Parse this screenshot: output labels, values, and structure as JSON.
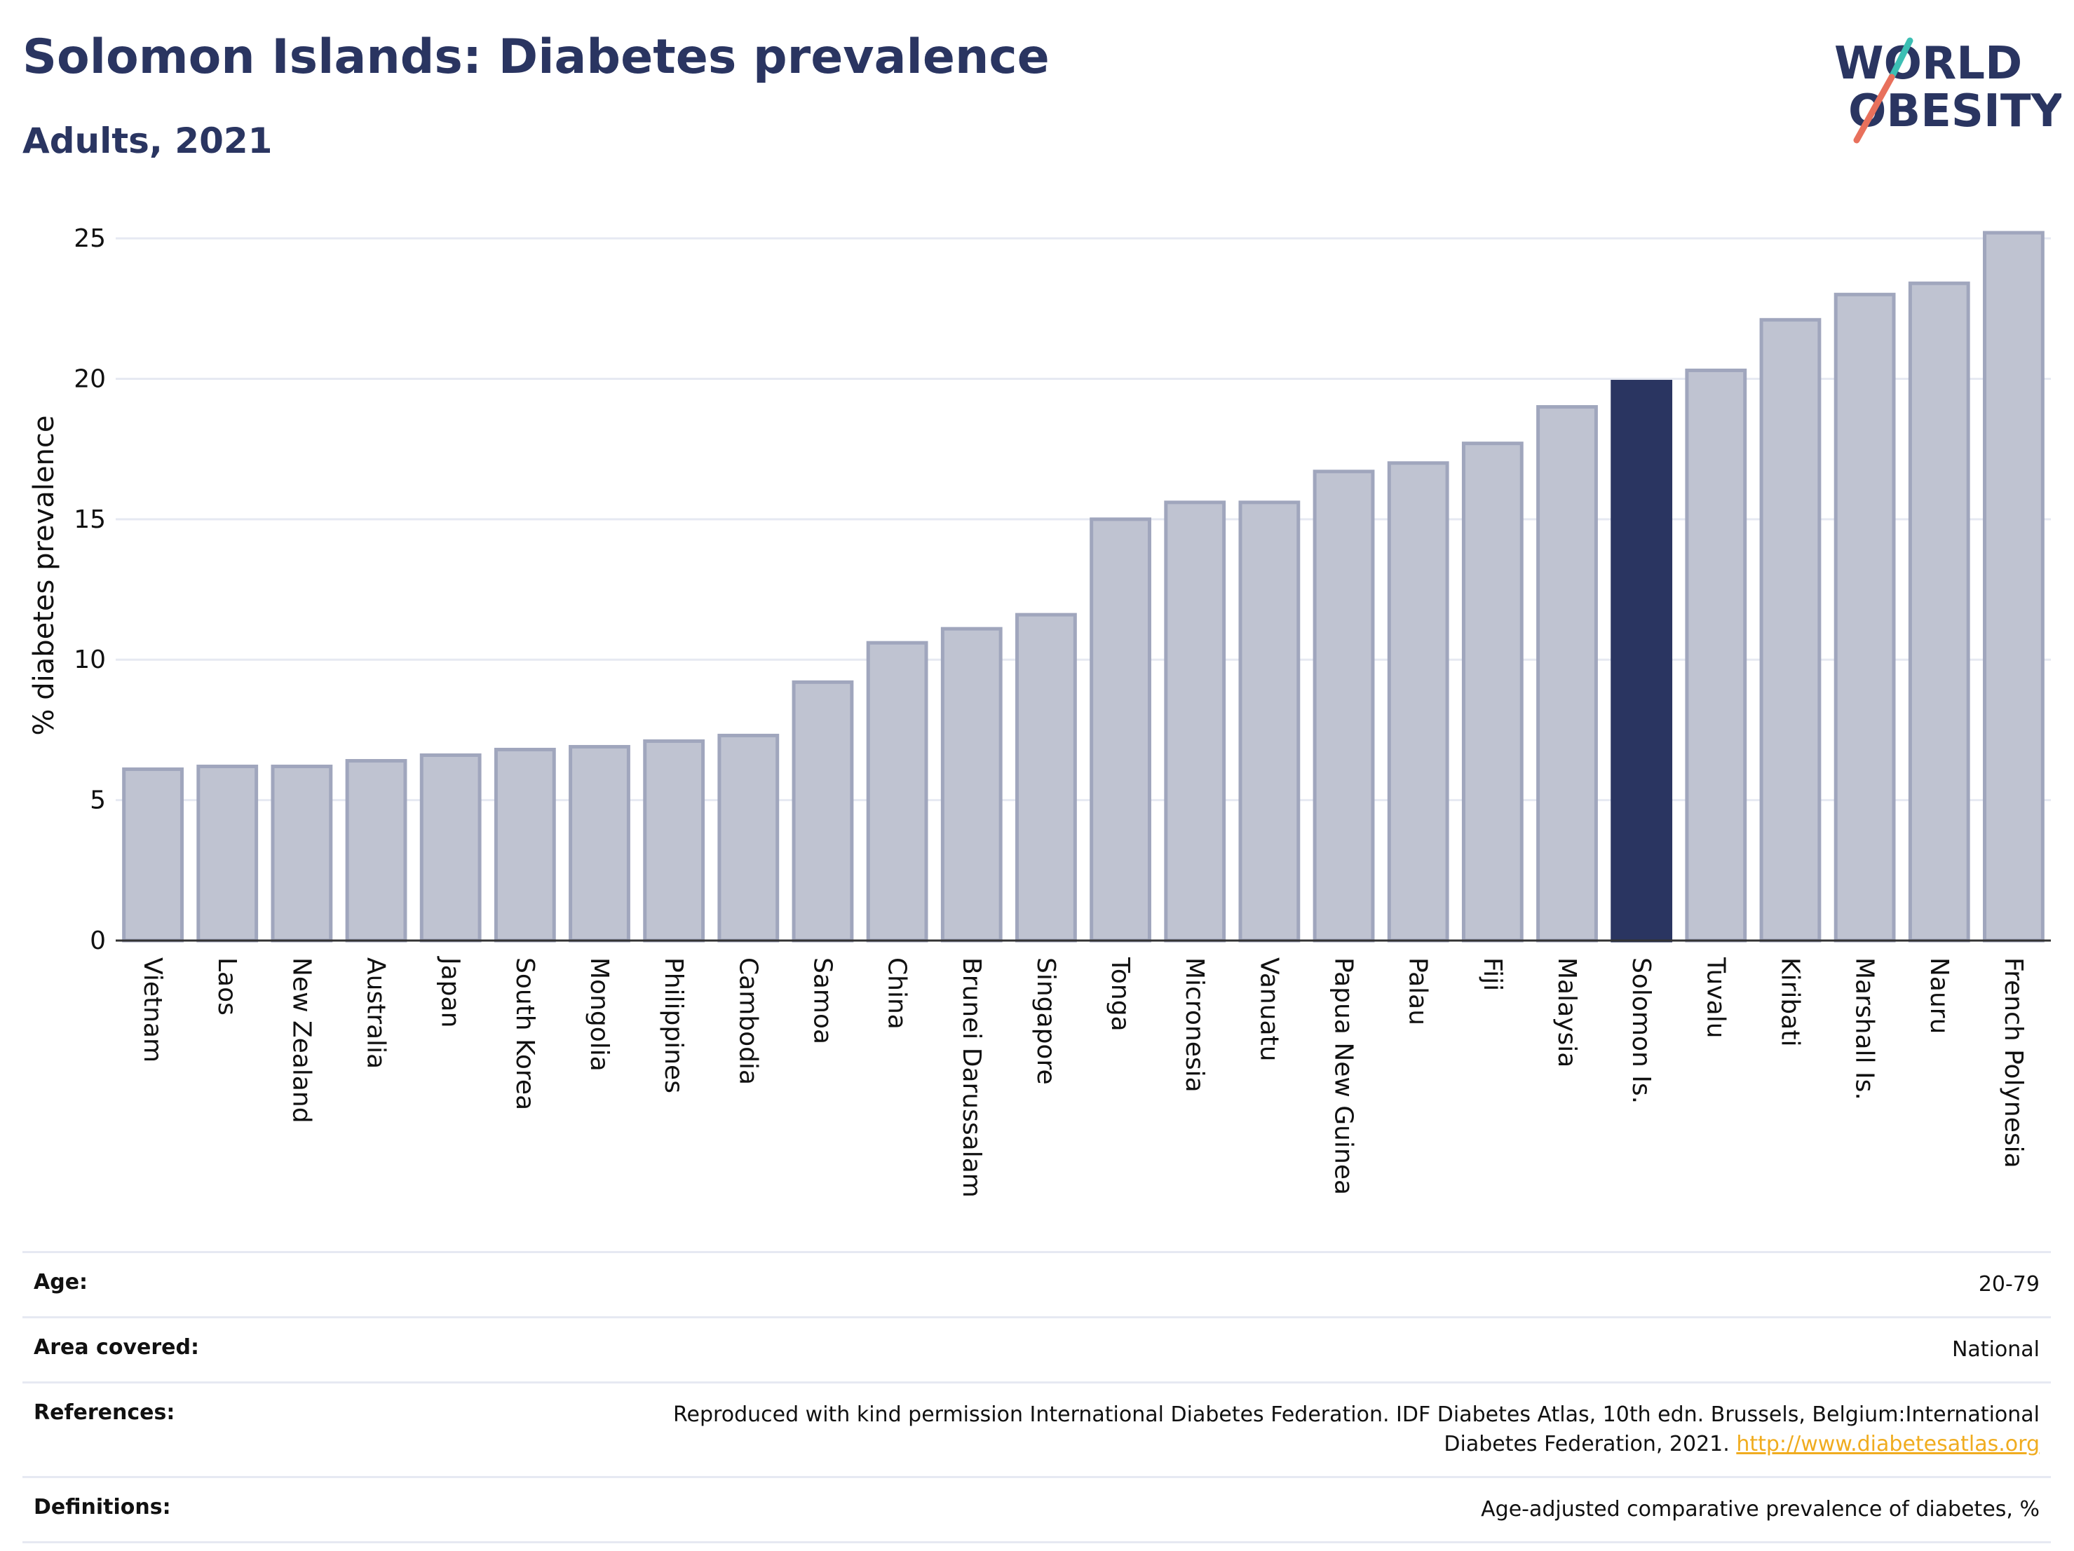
{
  "header": {
    "title": "Solomon Islands: Diabetes prevalence",
    "subtitle": "Adults, 2021"
  },
  "logo": {
    "line1": "WORLD",
    "line2": "OBESITY",
    "colors": {
      "text": "#2a3561",
      "teal": "#3cbfb4",
      "coral": "#e8705c"
    }
  },
  "colors": {
    "bar": "#bfc3d1",
    "bar_stroke": "#a0a6bd",
    "highlight": "#2a3561",
    "grid": "#e6e9f2",
    "axis": "#333333",
    "text": "#111111"
  },
  "chart_data": {
    "type": "bar",
    "ylabel": "% diabetes prevalence",
    "ylim": [
      0,
      26
    ],
    "yticks": [
      0,
      5,
      10,
      15,
      20,
      25
    ],
    "grid": true,
    "highlight": "Solomon Is.",
    "categories": [
      "Vietnam",
      "Laos",
      "New Zealand",
      "Australia",
      "Japan",
      "South Korea",
      "Mongolia",
      "Philippines",
      "Cambodia",
      "Samoa",
      "China",
      "Brunei Darussalam",
      "Singapore",
      "Tonga",
      "Micronesia",
      "Vanuatu",
      "Papua New Guinea",
      "Palau",
      "Fiji",
      "Malaysia",
      "Solomon Is.",
      "Tuvalu",
      "Kiribati",
      "Marshall Is.",
      "Nauru",
      "French Polynesia"
    ],
    "values": [
      6.1,
      6.2,
      6.2,
      6.4,
      6.6,
      6.8,
      6.9,
      7.1,
      7.3,
      9.2,
      10.6,
      11.1,
      11.6,
      15.0,
      15.6,
      15.6,
      16.7,
      17.0,
      17.7,
      19.0,
      19.9,
      20.3,
      22.1,
      23.0,
      23.4,
      25.2
    ]
  },
  "info": {
    "rows": [
      {
        "label": "Age:",
        "value": "20-79"
      },
      {
        "label": "Area covered:",
        "value": "National"
      },
      {
        "label": "References:",
        "value": "Reproduced with kind permission International Diabetes Federation.  IDF Diabetes Atlas, 10th edn. Brussels, Belgium:International Diabetes Federation, 2021. ",
        "link": "http://www.diabetesatlas.org"
      },
      {
        "label": "Definitions:",
        "value": "Age-adjusted comparative prevalence of diabetes, %"
      }
    ]
  }
}
